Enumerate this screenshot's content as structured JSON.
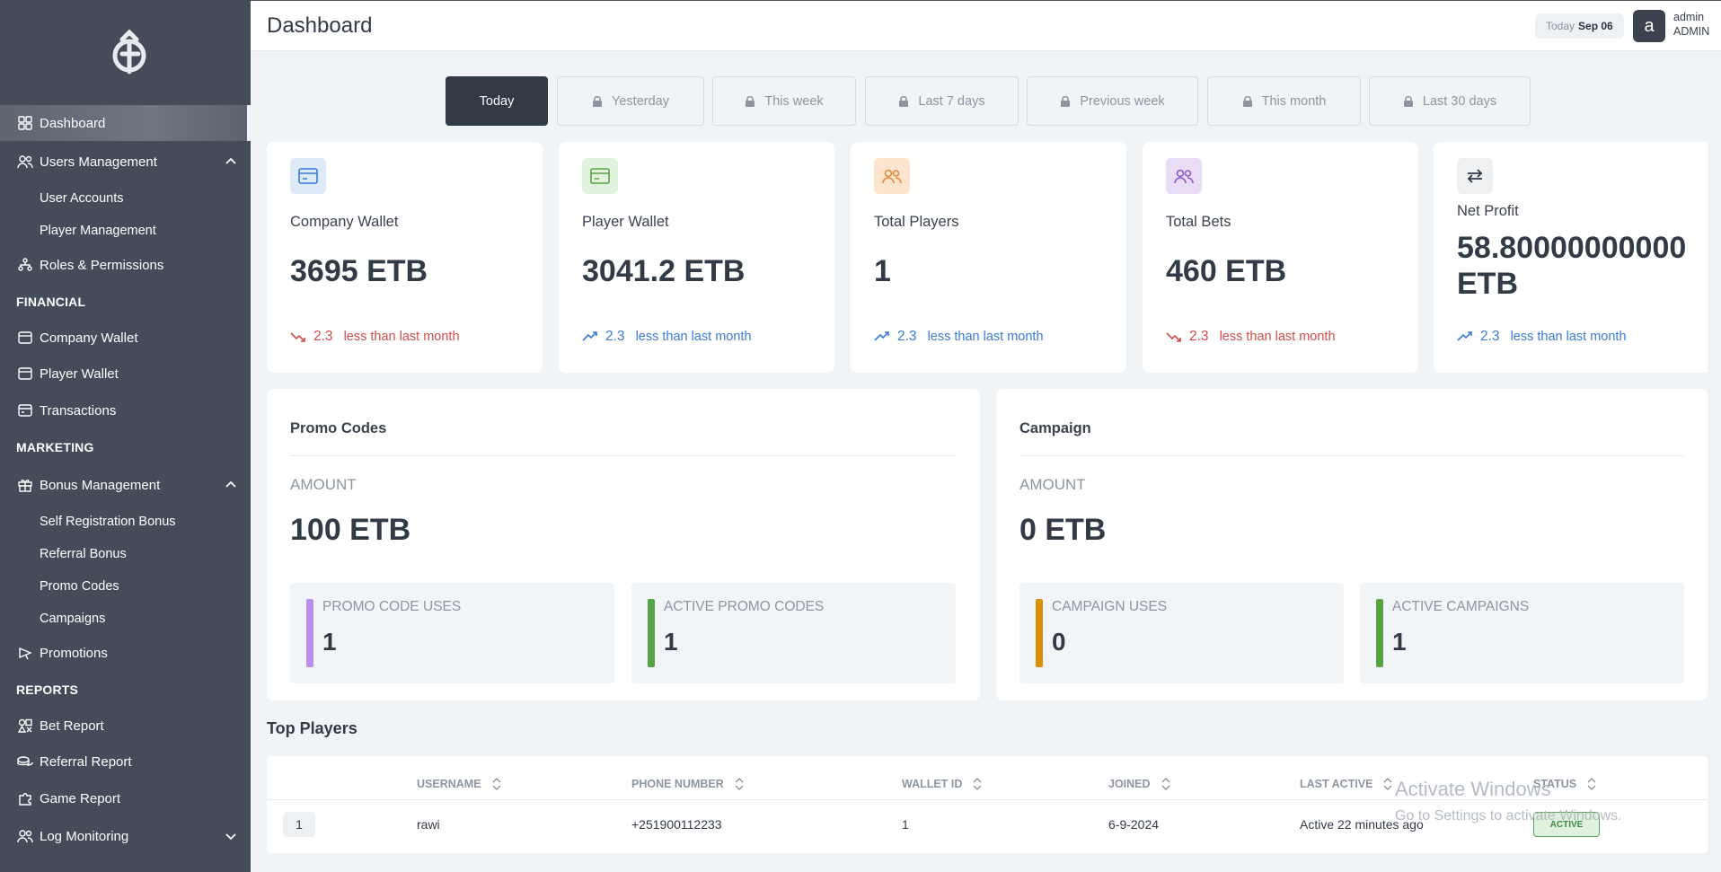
{
  "sidebar": {
    "items": [
      {
        "label": "Dashboard",
        "icon": "grid-icon"
      },
      {
        "label": "Users Management",
        "icon": "users-icon"
      },
      {
        "label": "User Accounts"
      },
      {
        "label": "Player Management"
      },
      {
        "label": "Roles & Permissions",
        "icon": "hierarchy-icon"
      },
      {
        "label": "Company Wallet",
        "icon": "wallet-icon"
      },
      {
        "label": "Player Wallet",
        "icon": "wallet-icon"
      },
      {
        "label": "Transactions",
        "icon": "card-icon"
      },
      {
        "label": "Bonus Management",
        "icon": "gift-icon"
      },
      {
        "label": "Self Registration Bonus"
      },
      {
        "label": "Referral Bonus"
      },
      {
        "label": "Promo Codes"
      },
      {
        "label": "Campaigns"
      },
      {
        "label": "Promotions",
        "icon": "megaphone-icon"
      },
      {
        "label": "Bet Report",
        "icon": "shapes-icon"
      },
      {
        "label": "Referral Report",
        "icon": "coins-icon"
      },
      {
        "label": "Game Report",
        "icon": "puzzle-icon"
      },
      {
        "label": "Log Monitoring",
        "icon": "users-icon"
      }
    ],
    "sections": [
      "FINANCIAL",
      "MARKETING",
      "REPORTS"
    ]
  },
  "header": {
    "title": "Dashboard",
    "date_prefix": "Today",
    "date": "Sep 06",
    "avatar_letter": "a",
    "user_name": "admin",
    "user_role": "ADMIN"
  },
  "tabs": [
    "Today",
    "Yesterday",
    "This week",
    "Last 7 days",
    "Previous week",
    "This month",
    "Last 30 days"
  ],
  "stats": [
    {
      "label": "Company Wallet",
      "value": "3695 ETB",
      "change": "2.3",
      "change_text": "less than last month",
      "trend": "down"
    },
    {
      "label": "Player Wallet",
      "value": "3041.2 ETB",
      "change": "2.3",
      "change_text": "less than last month",
      "trend": "up"
    },
    {
      "label": "Total Players",
      "value": "1",
      "change": "2.3",
      "change_text": "less than last month",
      "trend": "up"
    },
    {
      "label": "Total Bets",
      "value": "460 ETB",
      "change": "2.3",
      "change_text": "less than last month",
      "trend": "down"
    },
    {
      "label": "Net Profit",
      "value_line1": "58.80000000000",
      "value_line2": "ETB",
      "change": "2.3",
      "change_text": "less than last month",
      "trend": "up"
    }
  ],
  "promo": {
    "title": "Promo Codes",
    "amount_label": "AMOUNT",
    "amount": "100 ETB",
    "uses_label": "PROMO CODE USES",
    "uses": "1",
    "active_label": "ACTIVE PROMO CODES",
    "active": "1"
  },
  "campaign": {
    "title": "Campaign",
    "amount_label": "AMOUNT",
    "amount": "0 ETB",
    "uses_label": "CAMPAIGN USES",
    "uses": "0",
    "active_label": "ACTIVE CAMPAIGNS",
    "active": "1"
  },
  "top_players": {
    "title": "Top Players",
    "columns": [
      "USERNAME",
      "PHONE NUMBER",
      "WALLET ID",
      "JOINED",
      "LAST ACTIVE",
      "STATUS"
    ],
    "rows": [
      {
        "rank": "1",
        "username": "rawi",
        "phone": "+251900112233",
        "wallet_id": "1",
        "joined": "6-9-2024",
        "last_active": "Active 22 minutes ago",
        "status": "ACTIVE"
      }
    ]
  },
  "watermark": {
    "line1": "Activate Windows",
    "line2": "Go to Settings to activate Windows."
  },
  "colors": {
    "sidebar": "#434c58",
    "accent": "#323a46",
    "down": "#d24b4b",
    "up": "#3a7bd5",
    "purple_bar": "#b98ee8",
    "green_bar": "#57a446",
    "orange_bar": "#d89000"
  }
}
